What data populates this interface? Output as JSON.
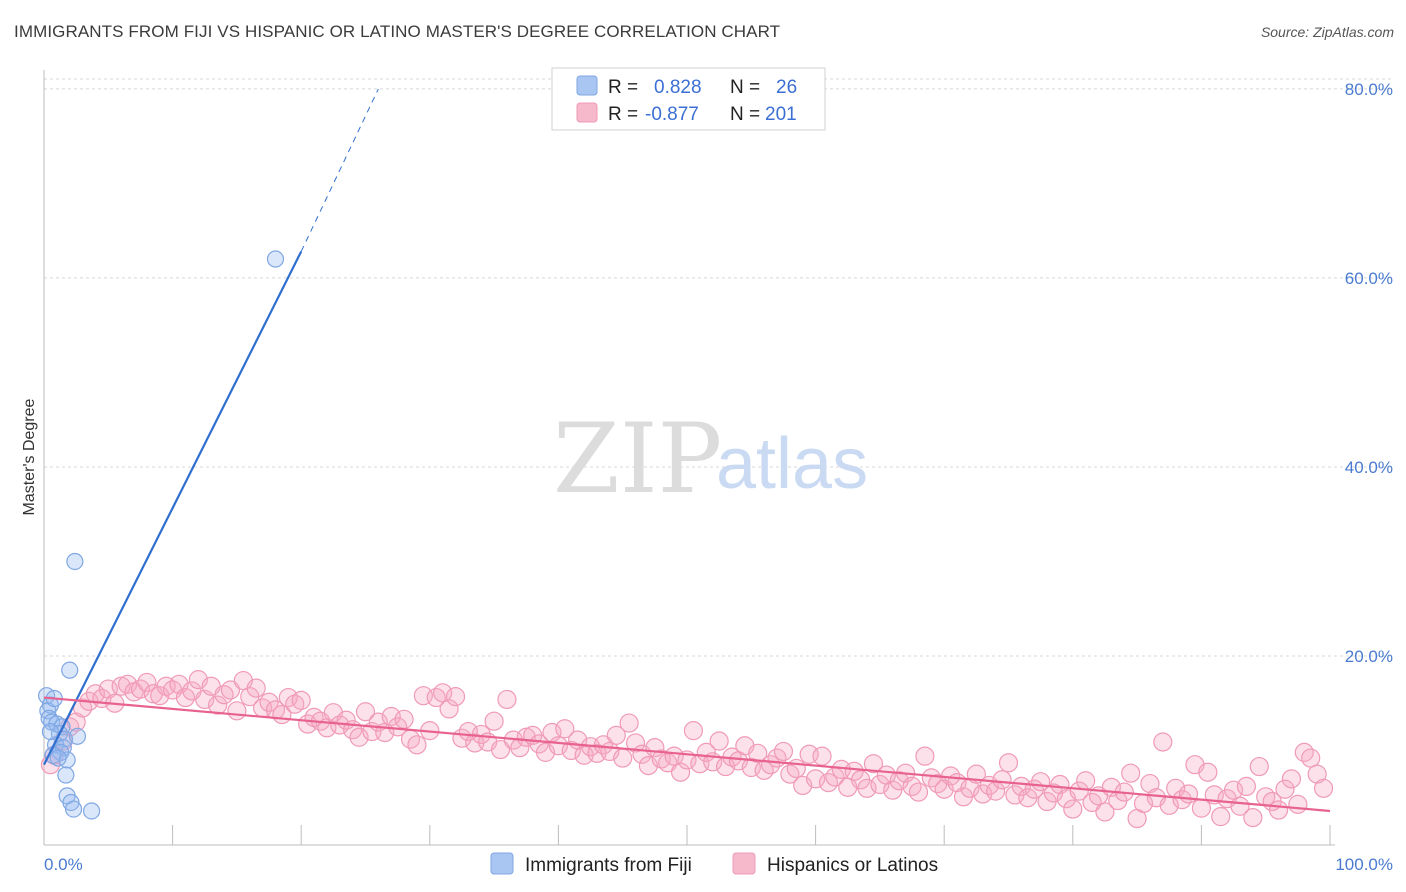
{
  "header": {
    "title": "IMMIGRANTS FROM FIJI VS HISPANIC OR LATINO MASTER'S DEGREE CORRELATION CHART",
    "source": "Source: ZipAtlas.com"
  },
  "watermark": {
    "zip": "ZIP",
    "atlas": "atlas"
  },
  "legend_box": {
    "rows": [
      {
        "r_label": "R =",
        "r_value": "0.828",
        "n_label": "N =",
        "n_value": "26",
        "color": "#a9c6f2"
      },
      {
        "r_label": "R =",
        "r_value": "-0.877",
        "n_label": "N =",
        "n_value": "201",
        "color": "#f6b8cb"
      }
    ]
  },
  "bottom_legend": [
    {
      "label": "Immigrants from Fiji",
      "color": "#a9c6f2"
    },
    {
      "label": "Hispanics or Latinos",
      "color": "#f6b8cb"
    }
  ],
  "colors": {
    "fiji_fill": "rgba(150,185,240,0.35)",
    "fiji_stroke": "#7fa7e3",
    "fiji_line": "#2f6fcf",
    "hisp_fill": "rgba(246,170,195,0.35)",
    "hisp_stroke": "#f09ab6",
    "hisp_line": "#e8628f",
    "axis_text": "#4a7bd0",
    "grid": "#d8d8d8"
  },
  "chart_data": {
    "type": "scatter",
    "title": "IMMIGRANTS FROM FIJI VS HISPANIC OR LATINO MASTER'S DEGREE CORRELATION CHART",
    "xlabel": "",
    "ylabel": "Master's Degree",
    "xlim": [
      0,
      100
    ],
    "ylim": [
      0,
      82
    ],
    "x_tick_labels": [
      "0.0%",
      "100.0%"
    ],
    "y_ticks": [
      20,
      40,
      60,
      80
    ],
    "y_tick_labels": [
      "20.0%",
      "40.0%",
      "60.0%",
      "80.0%"
    ],
    "grid": true,
    "legend_position": "top-center",
    "series": [
      {
        "name": "Immigrants from Fiji",
        "points": [
          [
            0.2,
            15.8
          ],
          [
            0.5,
            14.8
          ],
          [
            0.3,
            14.2
          ],
          [
            0.8,
            15.5
          ],
          [
            0.4,
            13.4
          ],
          [
            0.6,
            13.0
          ],
          [
            1.0,
            12.8
          ],
          [
            1.4,
            12.5
          ],
          [
            1.2,
            11.8
          ],
          [
            1.6,
            11.2
          ],
          [
            0.9,
            10.6
          ],
          [
            1.5,
            10.3
          ],
          [
            1.3,
            9.8
          ],
          [
            0.7,
            9.5
          ],
          [
            1.8,
            9.0
          ],
          [
            2.0,
            18.5
          ],
          [
            2.4,
            30.0
          ],
          [
            18.0,
            62.0
          ],
          [
            1.7,
            7.4
          ],
          [
            1.8,
            5.2
          ],
          [
            2.1,
            4.5
          ],
          [
            2.3,
            3.8
          ],
          [
            3.7,
            3.6
          ],
          [
            1.1,
            9.2
          ],
          [
            0.5,
            12.0
          ],
          [
            2.6,
            11.5
          ]
        ],
        "trend": {
          "x0": 0.0,
          "y0": 8.5,
          "x1": 20.0,
          "y1": 62.8,
          "dash_x1": 26.0,
          "dash_y1": 80.0
        }
      },
      {
        "name": "Hispanics or Latinos",
        "points": [
          [
            0.5,
            8.5
          ],
          [
            0.8,
            9.5
          ],
          [
            1.5,
            11.0
          ],
          [
            2.0,
            12.5
          ],
          [
            2.5,
            13.0
          ],
          [
            3.0,
            14.5
          ],
          [
            3.5,
            15.2
          ],
          [
            4.0,
            16.0
          ],
          [
            4.5,
            15.5
          ],
          [
            5.0,
            16.5
          ],
          [
            5.5,
            15.0
          ],
          [
            6.0,
            16.8
          ],
          [
            6.5,
            17.0
          ],
          [
            7.0,
            16.2
          ],
          [
            7.5,
            16.5
          ],
          [
            8.0,
            17.2
          ],
          [
            8.5,
            16.0
          ],
          [
            9.0,
            15.8
          ],
          [
            9.5,
            16.8
          ],
          [
            10.0,
            16.4
          ],
          [
            10.5,
            17.0
          ],
          [
            11.0,
            15.6
          ],
          [
            11.5,
            16.3
          ],
          [
            12.0,
            17.5
          ],
          [
            12.5,
            15.4
          ],
          [
            13.0,
            16.8
          ],
          [
            13.5,
            14.8
          ],
          [
            14.0,
            15.9
          ],
          [
            14.5,
            16.4
          ],
          [
            15.0,
            14.2
          ],
          [
            15.5,
            17.4
          ],
          [
            16.0,
            15.7
          ],
          [
            16.5,
            16.6
          ],
          [
            17.0,
            14.5
          ],
          [
            17.5,
            15.1
          ],
          [
            18.0,
            14.3
          ],
          [
            18.5,
            13.8
          ],
          [
            19.0,
            15.6
          ],
          [
            19.5,
            14.9
          ],
          [
            20.0,
            15.3
          ],
          [
            20.5,
            12.8
          ],
          [
            21.0,
            13.5
          ],
          [
            21.5,
            13.1
          ],
          [
            22.0,
            12.4
          ],
          [
            22.5,
            14.0
          ],
          [
            23.0,
            12.7
          ],
          [
            23.5,
            13.2
          ],
          [
            24.0,
            12.2
          ],
          [
            24.5,
            11.4
          ],
          [
            25.0,
            14.1
          ],
          [
            25.5,
            12.0
          ],
          [
            26.0,
            13.0
          ],
          [
            26.5,
            11.9
          ],
          [
            27.0,
            13.6
          ],
          [
            27.5,
            12.5
          ],
          [
            28.0,
            13.3
          ],
          [
            28.5,
            11.2
          ],
          [
            29.0,
            10.6
          ],
          [
            29.5,
            15.8
          ],
          [
            30.0,
            12.1
          ],
          [
            30.5,
            15.6
          ],
          [
            31.0,
            16.1
          ],
          [
            31.5,
            14.4
          ],
          [
            32.0,
            15.7
          ],
          [
            32.5,
            11.3
          ],
          [
            33.0,
            12.0
          ],
          [
            33.5,
            10.8
          ],
          [
            34.0,
            11.7
          ],
          [
            34.5,
            10.9
          ],
          [
            35.0,
            13.1
          ],
          [
            35.5,
            10.1
          ],
          [
            36.0,
            15.4
          ],
          [
            36.5,
            11.1
          ],
          [
            37.0,
            10.3
          ],
          [
            37.5,
            11.4
          ],
          [
            38.0,
            11.6
          ],
          [
            38.5,
            10.7
          ],
          [
            39.0,
            9.8
          ],
          [
            39.5,
            11.9
          ],
          [
            40.0,
            10.5
          ],
          [
            40.5,
            12.3
          ],
          [
            41.0,
            10.0
          ],
          [
            41.5,
            11.1
          ],
          [
            42.0,
            9.5
          ],
          [
            42.5,
            10.4
          ],
          [
            43.0,
            9.7
          ],
          [
            43.5,
            10.6
          ],
          [
            44.0,
            9.9
          ],
          [
            44.5,
            11.6
          ],
          [
            45.0,
            9.2
          ],
          [
            45.5,
            12.9
          ],
          [
            46.0,
            10.8
          ],
          [
            46.5,
            9.6
          ],
          [
            47.0,
            8.4
          ],
          [
            47.5,
            10.3
          ],
          [
            48.0,
            9.1
          ],
          [
            48.5,
            8.7
          ],
          [
            49.0,
            9.4
          ],
          [
            49.5,
            7.7
          ],
          [
            50.0,
            9.0
          ],
          [
            50.5,
            12.1
          ],
          [
            51.0,
            8.6
          ],
          [
            51.5,
            9.8
          ],
          [
            52.0,
            8.8
          ],
          [
            52.5,
            11.0
          ],
          [
            53.0,
            8.3
          ],
          [
            53.5,
            9.3
          ],
          [
            54.0,
            8.9
          ],
          [
            54.5,
            10.5
          ],
          [
            55.0,
            8.2
          ],
          [
            55.5,
            9.7
          ],
          [
            56.0,
            7.9
          ],
          [
            56.5,
            8.5
          ],
          [
            57.0,
            9.2
          ],
          [
            57.5,
            9.9
          ],
          [
            58.0,
            7.5
          ],
          [
            58.5,
            8.1
          ],
          [
            59.0,
            6.3
          ],
          [
            59.5,
            9.6
          ],
          [
            60.0,
            7.0
          ],
          [
            60.5,
            9.4
          ],
          [
            61.0,
            6.6
          ],
          [
            61.5,
            7.2
          ],
          [
            62.0,
            8.0
          ],
          [
            62.5,
            6.1
          ],
          [
            63.0,
            7.8
          ],
          [
            63.5,
            6.9
          ],
          [
            64.0,
            6.0
          ],
          [
            64.5,
            8.6
          ],
          [
            65.0,
            6.4
          ],
          [
            65.5,
            7.4
          ],
          [
            66.0,
            5.8
          ],
          [
            66.5,
            6.8
          ],
          [
            67.0,
            7.6
          ],
          [
            67.5,
            6.2
          ],
          [
            68.0,
            5.6
          ],
          [
            68.5,
            9.4
          ],
          [
            69.0,
            7.1
          ],
          [
            69.5,
            6.5
          ],
          [
            70.0,
            5.9
          ],
          [
            70.5,
            7.3
          ],
          [
            71.0,
            6.6
          ],
          [
            71.5,
            5.1
          ],
          [
            72.0,
            6.0
          ],
          [
            72.5,
            7.5
          ],
          [
            73.0,
            5.4
          ],
          [
            73.5,
            6.3
          ],
          [
            74.0,
            5.7
          ],
          [
            74.5,
            6.9
          ],
          [
            75.0,
            8.7
          ],
          [
            75.5,
            5.3
          ],
          [
            76.0,
            6.2
          ],
          [
            76.5,
            5.0
          ],
          [
            77.0,
            5.9
          ],
          [
            77.5,
            6.7
          ],
          [
            78.0,
            4.6
          ],
          [
            78.5,
            5.5
          ],
          [
            79.0,
            6.4
          ],
          [
            79.5,
            4.9
          ],
          [
            80.0,
            3.8
          ],
          [
            80.5,
            5.7
          ],
          [
            81.0,
            6.8
          ],
          [
            81.5,
            4.5
          ],
          [
            82.0,
            5.2
          ],
          [
            82.5,
            3.5
          ],
          [
            83.0,
            6.1
          ],
          [
            83.5,
            4.7
          ],
          [
            84.0,
            5.6
          ],
          [
            84.5,
            7.6
          ],
          [
            85.0,
            2.8
          ],
          [
            85.5,
            4.4
          ],
          [
            86.0,
            6.5
          ],
          [
            86.5,
            5.0
          ],
          [
            87.0,
            10.9
          ],
          [
            87.5,
            4.2
          ],
          [
            88.0,
            6.0
          ],
          [
            88.5,
            4.8
          ],
          [
            89.0,
            5.4
          ],
          [
            89.5,
            8.5
          ],
          [
            90.0,
            3.9
          ],
          [
            90.5,
            7.7
          ],
          [
            91.0,
            5.3
          ],
          [
            91.5,
            3.0
          ],
          [
            92.0,
            4.9
          ],
          [
            92.5,
            5.8
          ],
          [
            93.0,
            4.1
          ],
          [
            93.5,
            6.2
          ],
          [
            94.0,
            2.9
          ],
          [
            94.5,
            8.3
          ],
          [
            95.0,
            5.1
          ],
          [
            95.5,
            4.6
          ],
          [
            96.0,
            3.7
          ],
          [
            96.5,
            5.9
          ],
          [
            97.0,
            7.0
          ],
          [
            97.5,
            4.3
          ],
          [
            98.0,
            9.8
          ],
          [
            98.5,
            9.2
          ],
          [
            99.0,
            7.5
          ],
          [
            99.5,
            6.0
          ]
        ],
        "trend": {
          "x0": 0.0,
          "y0": 15.6,
          "x1": 100.0,
          "y1": 3.6
        }
      }
    ]
  }
}
